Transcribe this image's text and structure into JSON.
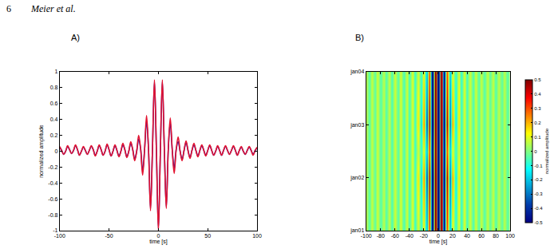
{
  "header": {
    "page_number": 6,
    "running_head": "Meier et al."
  },
  "chart_data": [
    {
      "type": "line",
      "title": "A)",
      "x_label": "time [s]",
      "y_label": "normalized amplitude",
      "grid": false,
      "x": [
        -100,
        -98,
        -96,
        -94,
        -92,
        -90,
        -88,
        -86,
        -84,
        -82,
        -80,
        -78,
        -76,
        -74,
        -72,
        -70,
        -68,
        -66,
        -64,
        -62,
        -60,
        -58,
        -56,
        -54,
        -52,
        -50,
        -48,
        -46,
        -44,
        -42,
        -40,
        -38,
        -36,
        -34,
        -32,
        -30,
        -28,
        -26,
        -24,
        -22,
        -20,
        -18,
        -16,
        -14,
        -12,
        -10,
        -8,
        -6,
        -4,
        -2,
        0,
        2,
        4,
        6,
        8,
        10,
        12,
        14,
        16,
        18,
        20,
        22,
        24,
        26,
        28,
        30,
        32,
        34,
        36,
        38,
        40,
        42,
        44,
        46,
        48,
        50,
        52,
        54,
        56,
        58,
        60,
        62,
        64,
        66,
        68,
        70,
        72,
        74,
        76,
        78,
        80,
        82,
        84,
        86,
        88,
        90,
        92,
        94,
        96,
        98,
        100
      ],
      "series": [
        {
          "color": "#2323b8",
          "values": [
            0.05,
            0.01,
            -0.04,
            0.0,
            0.06,
            0.02,
            -0.03,
            0.01,
            0.07,
            0.02,
            -0.05,
            0.0,
            0.05,
            0.01,
            -0.04,
            0.01,
            0.06,
            0.02,
            -0.05,
            0.0,
            0.07,
            0.02,
            -0.05,
            0.0,
            0.08,
            0.02,
            -0.06,
            0.0,
            0.07,
            0.01,
            -0.06,
            0.0,
            0.08,
            0.02,
            -0.07,
            0.0,
            0.1,
            0.02,
            -0.1,
            0.0,
            0.15,
            0.03,
            -0.25,
            0.02,
            0.38,
            0.02,
            -0.72,
            0.03,
            0.88,
            0.0,
            -0.97,
            0.0,
            0.88,
            0.03,
            -0.7,
            0.02,
            0.36,
            0.02,
            -0.22,
            0.02,
            0.12,
            0.0,
            -0.1,
            0.01,
            0.11,
            0.01,
            -0.08,
            0.01,
            0.08,
            0.01,
            -0.06,
            0.01,
            0.07,
            0.01,
            -0.05,
            0.01,
            0.07,
            0.01,
            -0.05,
            0.0,
            0.06,
            0.01,
            -0.05,
            0.01,
            0.06,
            0.01,
            -0.04,
            0.01,
            0.06,
            0.01,
            -0.05,
            0.01,
            0.05,
            0.0,
            -0.04,
            0.01,
            0.05,
            0.01,
            -0.04,
            0.01,
            0.04
          ]
        },
        {
          "color": "#e3122f",
          "values": [
            0.06,
            0.01,
            -0.04,
            0.0,
            0.07,
            0.02,
            -0.03,
            0.01,
            0.08,
            0.02,
            -0.05,
            0.0,
            0.06,
            0.01,
            -0.04,
            0.01,
            0.07,
            0.02,
            -0.06,
            0.0,
            0.08,
            0.02,
            -0.05,
            0.0,
            0.09,
            0.02,
            -0.06,
            0.0,
            0.08,
            0.01,
            -0.07,
            0.0,
            0.1,
            0.02,
            -0.08,
            0.0,
            0.12,
            0.02,
            -0.12,
            0.0,
            0.2,
            0.03,
            -0.3,
            0.02,
            0.45,
            0.02,
            -0.75,
            0.03,
            0.9,
            0.0,
            -1.0,
            0.0,
            0.9,
            0.03,
            -0.72,
            0.02,
            0.42,
            0.02,
            -0.28,
            0.02,
            0.18,
            0.0,
            -0.12,
            0.01,
            0.13,
            0.01,
            -0.09,
            0.01,
            0.1,
            0.01,
            -0.07,
            0.01,
            0.08,
            0.01,
            -0.06,
            0.01,
            0.08,
            0.01,
            -0.05,
            0.0,
            0.07,
            0.01,
            -0.05,
            0.01,
            0.07,
            0.01,
            -0.04,
            0.01,
            0.07,
            0.01,
            -0.05,
            0.01,
            0.06,
            0.0,
            -0.04,
            0.01,
            0.06,
            0.01,
            -0.05,
            0.01,
            0.05
          ]
        }
      ],
      "xlim": [
        -100,
        100
      ],
      "xticks": [
        -100,
        -50,
        0,
        50,
        100
      ],
      "ylim": [
        -1,
        1
      ],
      "yticks": [
        -1,
        -0.8,
        -0.6,
        -0.4,
        -0.2,
        0,
        0.2,
        0.4,
        0.6,
        0.8,
        1
      ]
    },
    {
      "type": "heatmap",
      "title": "B)",
      "x_label": "time [s]",
      "grid": false,
      "x": [
        -100,
        -96,
        -92,
        -88,
        -84,
        -80,
        -76,
        -72,
        -68,
        -64,
        -60,
        -56,
        -52,
        -48,
        -44,
        -40,
        -36,
        -32,
        -28,
        -24,
        -20,
        -16,
        -12,
        -8,
        -4,
        0,
        4,
        8,
        12,
        16,
        20,
        24,
        28,
        32,
        36,
        40,
        44,
        48,
        52,
        56,
        60,
        64,
        68,
        72,
        76,
        80,
        84,
        88,
        92,
        96,
        100
      ],
      "y": [
        1,
        1.5,
        2,
        2.5,
        3,
        3.5,
        4
      ],
      "z": [
        [
          0.06,
          -0.05,
          0.07,
          -0.04,
          0.08,
          -0.05,
          0.06,
          -0.05,
          0.07,
          -0.06,
          0.08,
          -0.05,
          0.09,
          -0.06,
          0.08,
          -0.07,
          0.1,
          -0.08,
          0.08,
          -0.08,
          0.12,
          -0.22,
          0.35,
          -0.7,
          0.88,
          -0.97,
          0.88,
          -0.68,
          0.33,
          -0.2,
          0.11,
          -0.08,
          0.09,
          -0.09,
          0.1,
          -0.07,
          0.08,
          -0.06,
          0.08,
          -0.05,
          0.07,
          -0.05,
          0.07,
          -0.04,
          0.07,
          -0.05,
          0.06,
          -0.04,
          0.06,
          -0.05,
          0.05
        ],
        [
          0.06,
          -0.05,
          0.07,
          -0.04,
          0.08,
          -0.05,
          0.06,
          -0.05,
          0.07,
          -0.06,
          0.08,
          -0.05,
          0.09,
          -0.06,
          0.08,
          -0.07,
          0.1,
          -0.08,
          0.12,
          -0.12,
          0.2,
          -0.3,
          0.45,
          -0.75,
          0.9,
          -1.0,
          0.9,
          -0.72,
          0.42,
          -0.28,
          0.18,
          -0.12,
          0.13,
          -0.09,
          0.1,
          -0.07,
          0.08,
          -0.06,
          0.08,
          -0.05,
          0.07,
          -0.05,
          0.07,
          -0.04,
          0.07,
          -0.05,
          0.06,
          -0.04,
          0.06,
          -0.05,
          0.05
        ],
        [
          0.06,
          -0.05,
          0.07,
          -0.04,
          0.08,
          -0.05,
          0.06,
          -0.05,
          0.07,
          -0.06,
          0.08,
          -0.05,
          0.09,
          -0.06,
          0.08,
          -0.07,
          0.1,
          -0.08,
          0.15,
          -0.18,
          0.28,
          -0.4,
          0.55,
          -0.8,
          0.92,
          -1.0,
          0.92,
          -0.78,
          0.5,
          -0.35,
          0.24,
          -0.15,
          0.15,
          -0.09,
          0.1,
          -0.07,
          0.08,
          -0.06,
          0.08,
          -0.05,
          0.07,
          -0.05,
          0.07,
          -0.04,
          0.07,
          -0.05,
          0.06,
          -0.04,
          0.06,
          -0.05,
          0.05
        ],
        [
          0.06,
          -0.05,
          0.07,
          -0.04,
          0.08,
          -0.05,
          0.06,
          -0.05,
          0.07,
          -0.06,
          0.08,
          -0.05,
          0.09,
          -0.06,
          0.08,
          -0.07,
          0.1,
          -0.08,
          0.08,
          -0.08,
          0.12,
          -0.22,
          0.35,
          -0.7,
          0.88,
          -0.97,
          0.88,
          -0.68,
          0.33,
          -0.2,
          0.11,
          -0.08,
          0.09,
          -0.09,
          0.1,
          -0.07,
          0.08,
          -0.06,
          0.08,
          -0.05,
          0.07,
          -0.05,
          0.07,
          -0.04,
          0.07,
          -0.05,
          0.06,
          -0.04,
          0.06,
          -0.05,
          0.05
        ],
        [
          0.06,
          -0.05,
          0.07,
          -0.04,
          0.08,
          -0.05,
          0.06,
          -0.05,
          0.07,
          -0.06,
          0.08,
          -0.05,
          0.09,
          -0.06,
          0.08,
          -0.07,
          0.1,
          -0.08,
          0.15,
          -0.18,
          0.28,
          -0.4,
          0.55,
          -0.8,
          0.92,
          -1.0,
          0.92,
          -0.78,
          0.5,
          -0.35,
          0.24,
          -0.15,
          0.15,
          -0.09,
          0.1,
          -0.07,
          0.08,
          -0.06,
          0.08,
          -0.05,
          0.07,
          -0.05,
          0.07,
          -0.04,
          0.07,
          -0.05,
          0.06,
          -0.04,
          0.06,
          -0.05,
          0.05
        ],
        [
          0.06,
          -0.05,
          0.07,
          -0.04,
          0.08,
          -0.05,
          0.06,
          -0.05,
          0.07,
          -0.06,
          0.08,
          -0.05,
          0.09,
          -0.06,
          0.08,
          -0.07,
          0.1,
          -0.08,
          0.12,
          -0.12,
          0.2,
          -0.3,
          0.45,
          -0.75,
          0.9,
          -1.0,
          0.9,
          -0.72,
          0.42,
          -0.28,
          0.18,
          -0.12,
          0.13,
          -0.09,
          0.1,
          -0.07,
          0.08,
          -0.06,
          0.08,
          -0.05,
          0.07,
          -0.05,
          0.07,
          -0.04,
          0.07,
          -0.05,
          0.06,
          -0.04,
          0.06,
          -0.05,
          0.05
        ],
        [
          0.06,
          -0.05,
          0.07,
          -0.04,
          0.08,
          -0.05,
          0.06,
          -0.05,
          0.07,
          -0.06,
          0.08,
          -0.05,
          0.09,
          -0.06,
          0.08,
          -0.07,
          0.1,
          -0.08,
          0.08,
          -0.08,
          0.12,
          -0.22,
          0.35,
          -0.7,
          0.88,
          -0.97,
          0.88,
          -0.68,
          0.33,
          -0.2,
          0.11,
          -0.08,
          0.09,
          -0.09,
          0.1,
          -0.07,
          0.08,
          -0.06,
          0.08,
          -0.05,
          0.07,
          -0.05,
          0.07,
          -0.04,
          0.07,
          -0.05,
          0.06,
          -0.04,
          0.06,
          -0.05,
          0.05
        ]
      ],
      "xlim": [
        -100,
        100
      ],
      "xticks": [
        -100,
        -80,
        -60,
        -40,
        -20,
        0,
        20,
        40,
        60,
        80,
        100
      ],
      "ylim": [
        1,
        4
      ],
      "yticks": [
        {
          "value": 1,
          "label": "jan01"
        },
        {
          "value": 2,
          "label": "jan02"
        },
        {
          "value": 3,
          "label": "jan03"
        },
        {
          "value": 4,
          "label": "jan04"
        }
      ],
      "colorbar": {
        "lim": [
          -0.5,
          0.5
        ],
        "ticks": [
          -0.5,
          -0.4,
          -0.3,
          -0.2,
          -0.1,
          0,
          0.1,
          0.2,
          0.3,
          0.4,
          0.5
        ],
        "label": "normalized amplitude"
      }
    }
  ]
}
